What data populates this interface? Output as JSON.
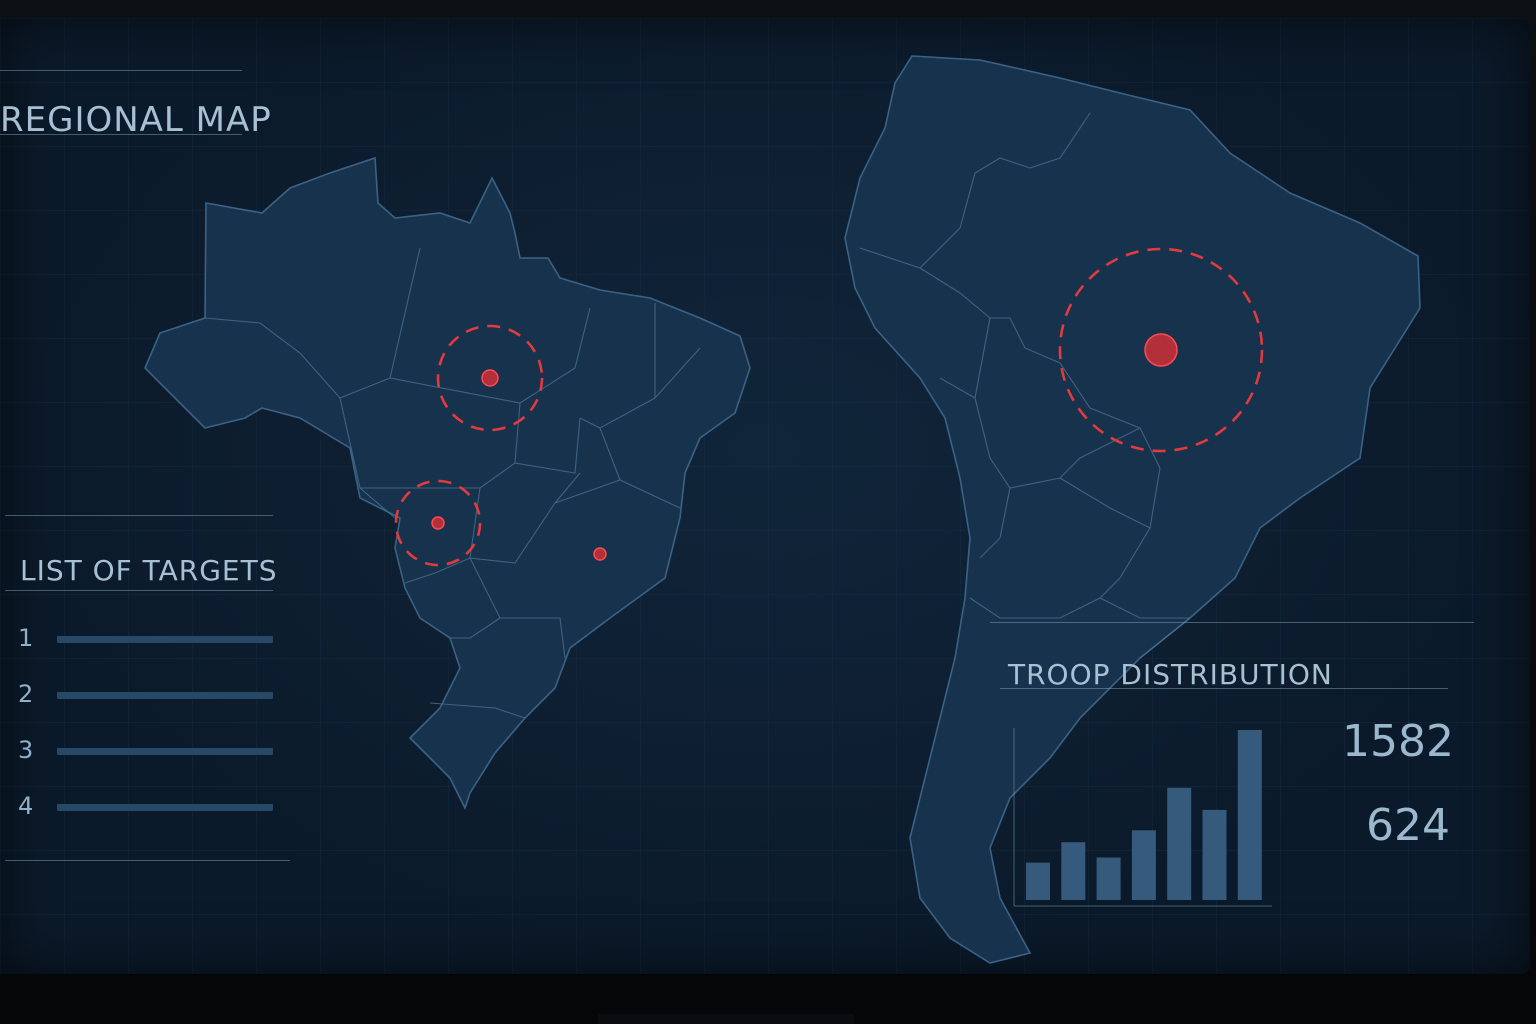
{
  "panels": {
    "regional_map": {
      "title": "REGIONAL MAP"
    },
    "targets": {
      "title": "LIST OF TARGETS",
      "items": [
        "1",
        "2",
        "3",
        "4"
      ]
    },
    "troop_distribution": {
      "title": "TROOP DISTRIBUTION",
      "stats": [
        "1582",
        "624"
      ]
    }
  },
  "colors": {
    "background": "#0b1a2a",
    "land": "#17324c",
    "accent_red": "#e23a3f",
    "text": "#a7c0d4"
  },
  "chart_data": {
    "type": "bar",
    "categories": [
      "",
      "",
      "",
      "",
      "",
      "",
      ""
    ],
    "values": [
      22,
      34,
      25,
      41,
      66,
      53,
      100
    ],
    "ylim": [
      0,
      100
    ],
    "grid": false
  }
}
